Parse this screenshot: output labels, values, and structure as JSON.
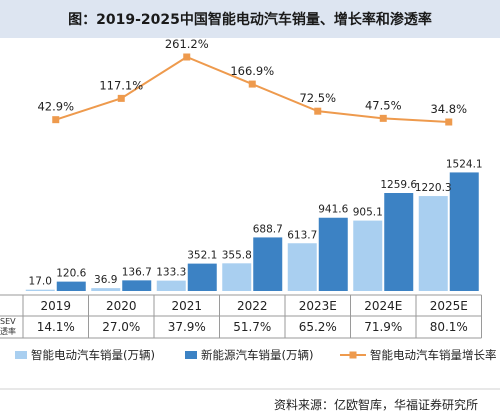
{
  "page": {
    "title": "图：2019-2025中国智能电动汽车销量、增长率和渗透率",
    "source": "资料来源：亿欧智库，华福证券研究所"
  },
  "chart_data": {
    "type": "bar",
    "categories": [
      "2019",
      "2020",
      "2021",
      "2022",
      "2023E",
      "2024E",
      "2025E"
    ],
    "series": [
      {
        "name": "智能电动汽车销量(万辆)",
        "type": "bar",
        "color": "#a9cff0",
        "values": [
          17.0,
          36.9,
          133.3,
          355.8,
          613.7,
          905.1,
          1220.3
        ]
      },
      {
        "name": "新能源汽车销量(万辆)",
        "type": "bar",
        "color": "#3c82c4",
        "values": [
          120.6,
          136.7,
          352.1,
          688.7,
          941.6,
          1259.6,
          1524.1
        ]
      },
      {
        "name": "智能电动汽车销量增长率",
        "type": "line",
        "color": "#ee9a4d",
        "values": [
          42.9,
          117.1,
          261.2,
          166.9,
          72.5,
          47.5,
          34.8
        ],
        "unit": "%"
      }
    ],
    "value_labels": {
      "bar_smart": [
        "17.0",
        "36.9",
        "133.3",
        "355.8",
        "613.7",
        "905.1",
        "1220.3"
      ],
      "bar_nev": [
        "120.6",
        "136.7",
        "352.1",
        "688.7",
        "941.6",
        "1259.6",
        "1524.1"
      ],
      "growth": [
        "42.9%",
        "117.1%",
        "261.2%",
        "166.9%",
        "72.5%",
        "47.5%",
        "34.8%"
      ]
    },
    "table_row": {
      "label_line1": "SEV",
      "label_line2": "透率",
      "values": [
        "14.1%",
        "27.0%",
        "37.9%",
        "51.7%",
        "65.2%",
        "71.9%",
        "80.1%"
      ]
    },
    "bar_ylim": [
      0,
      1600
    ],
    "line_ylim": [
      -130,
      300
    ],
    "legend_position": "bottom"
  }
}
